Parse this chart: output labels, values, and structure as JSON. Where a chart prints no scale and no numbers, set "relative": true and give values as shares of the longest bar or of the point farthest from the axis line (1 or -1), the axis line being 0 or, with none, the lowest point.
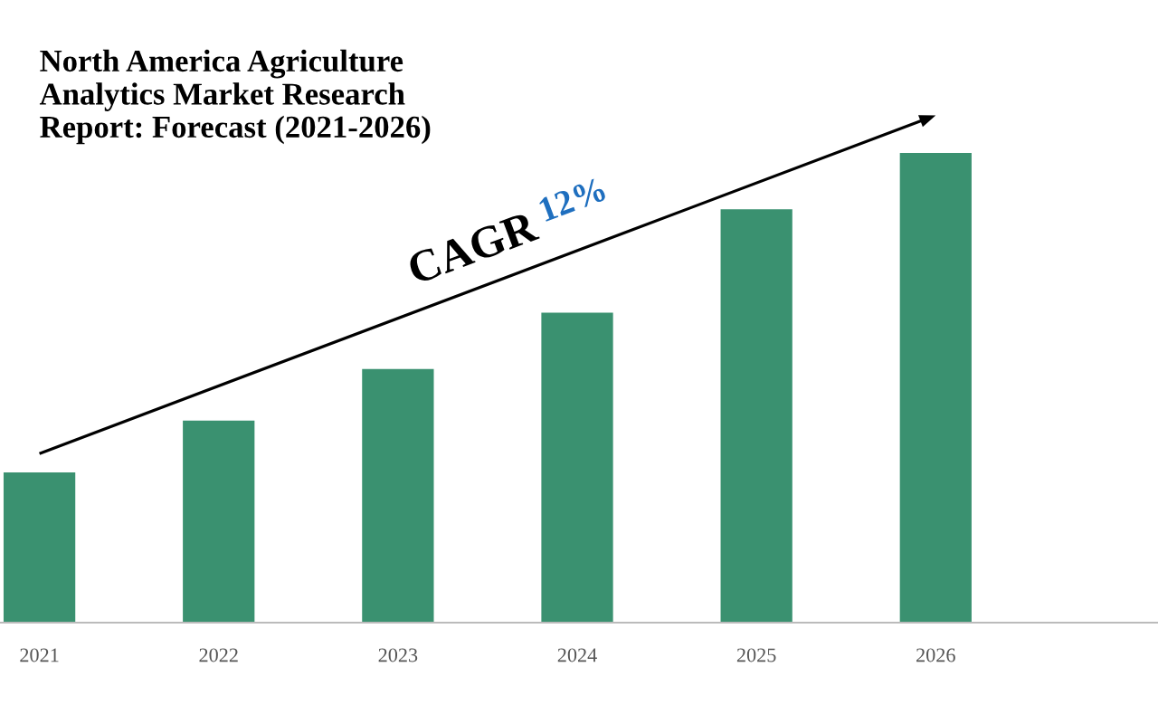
{
  "chart_data": {
    "type": "bar",
    "title": "North America Agriculture\nAnalytics Market Research\nReport: Forecast (2021-2026)",
    "categories": [
      "2021",
      "2022",
      "2023",
      "2024",
      "2025",
      "2026"
    ],
    "values": [
      0.32,
      0.43,
      0.54,
      0.66,
      0.88,
      1.0
    ],
    "color": "#3a9170",
    "relative": true,
    "tick_labels": "x",
    "grid": false,
    "legend": false,
    "annotations": [
      "CAGR",
      "12%"
    ]
  }
}
